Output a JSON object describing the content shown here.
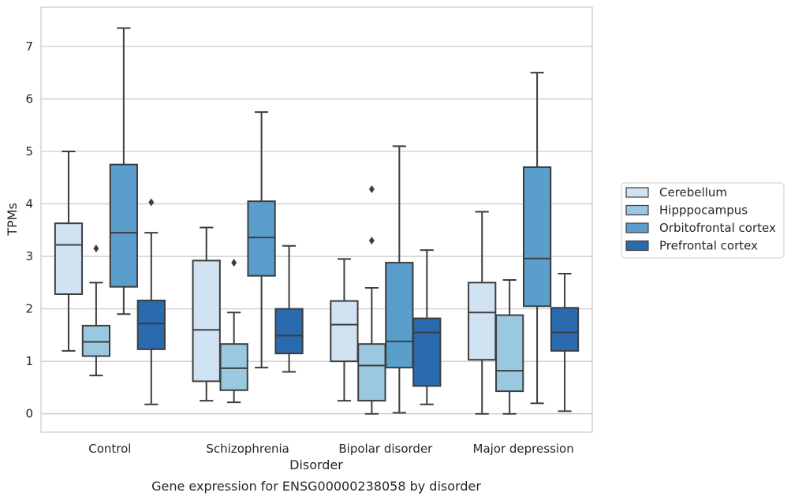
{
  "chart_data": {
    "type": "box",
    "xlabel": "Disorder",
    "ylabel": "TPMs",
    "caption": "Gene expression for ENSG00000238058 by disorder",
    "ylim": [
      -0.35,
      7.75
    ],
    "yticks": [
      0,
      1,
      2,
      3,
      4,
      5,
      6,
      7
    ],
    "grid": "horizontal",
    "legend_position": "right",
    "categories": [
      "Control",
      "Schizophrenia",
      "Bipolar disorder",
      "Major depression"
    ],
    "series": [
      {
        "name": "Cerebellum",
        "color": "#d1e2f2",
        "boxes": [
          {
            "whislo": 1.2,
            "q1": 2.28,
            "med": 3.22,
            "q3": 3.63,
            "whishi": 5.0,
            "fliers": []
          },
          {
            "whislo": 0.25,
            "q1": 0.62,
            "med": 1.6,
            "q3": 2.92,
            "whishi": 3.55,
            "fliers": []
          },
          {
            "whislo": 0.25,
            "q1": 1.0,
            "med": 1.7,
            "q3": 2.15,
            "whishi": 2.95,
            "fliers": []
          },
          {
            "whislo": 0.0,
            "q1": 1.03,
            "med": 1.93,
            "q3": 2.5,
            "whishi": 3.85,
            "fliers": []
          }
        ]
      },
      {
        "name": "Hipppocampus",
        "color": "#9ac8e0",
        "boxes": [
          {
            "whislo": 0.73,
            "q1": 1.1,
            "med": 1.37,
            "q3": 1.68,
            "whishi": 2.5,
            "fliers": [
              3.15
            ]
          },
          {
            "whislo": 0.22,
            "q1": 0.45,
            "med": 0.87,
            "q3": 1.33,
            "whishi": 1.93,
            "fliers": [
              2.88
            ]
          },
          {
            "whislo": 0.0,
            "q1": 0.25,
            "med": 0.92,
            "q3": 1.33,
            "whishi": 2.4,
            "fliers": [
              3.3,
              4.28
            ]
          },
          {
            "whislo": 0.0,
            "q1": 0.43,
            "med": 0.82,
            "q3": 1.88,
            "whishi": 2.55,
            "fliers": []
          }
        ]
      },
      {
        "name": "Orbitofrontal cortex",
        "color": "#5a9ecc",
        "boxes": [
          {
            "whislo": 1.9,
            "q1": 2.42,
            "med": 3.45,
            "q3": 4.75,
            "whishi": 7.35,
            "fliers": []
          },
          {
            "whislo": 0.88,
            "q1": 2.63,
            "med": 3.36,
            "q3": 4.05,
            "whishi": 5.75,
            "fliers": []
          },
          {
            "whislo": 0.02,
            "q1": 0.88,
            "med": 1.38,
            "q3": 2.88,
            "whishi": 5.1,
            "fliers": []
          },
          {
            "whislo": 0.2,
            "q1": 2.05,
            "med": 2.96,
            "q3": 4.7,
            "whishi": 6.5,
            "fliers": []
          }
        ]
      },
      {
        "name": "Prefrontal cortex",
        "color": "#2a6aae",
        "boxes": [
          {
            "whislo": 0.18,
            "q1": 1.23,
            "med": 1.72,
            "q3": 2.16,
            "whishi": 3.45,
            "fliers": [
              4.03
            ]
          },
          {
            "whislo": 0.8,
            "q1": 1.15,
            "med": 1.49,
            "q3": 2.0,
            "whishi": 3.2,
            "fliers": []
          },
          {
            "whislo": 0.18,
            "q1": 0.53,
            "med": 1.55,
            "q3": 1.82,
            "whishi": 3.12,
            "fliers": []
          },
          {
            "whislo": 0.05,
            "q1": 1.2,
            "med": 1.55,
            "q3": 2.02,
            "whishi": 2.67,
            "fliers": []
          }
        ]
      }
    ]
  }
}
